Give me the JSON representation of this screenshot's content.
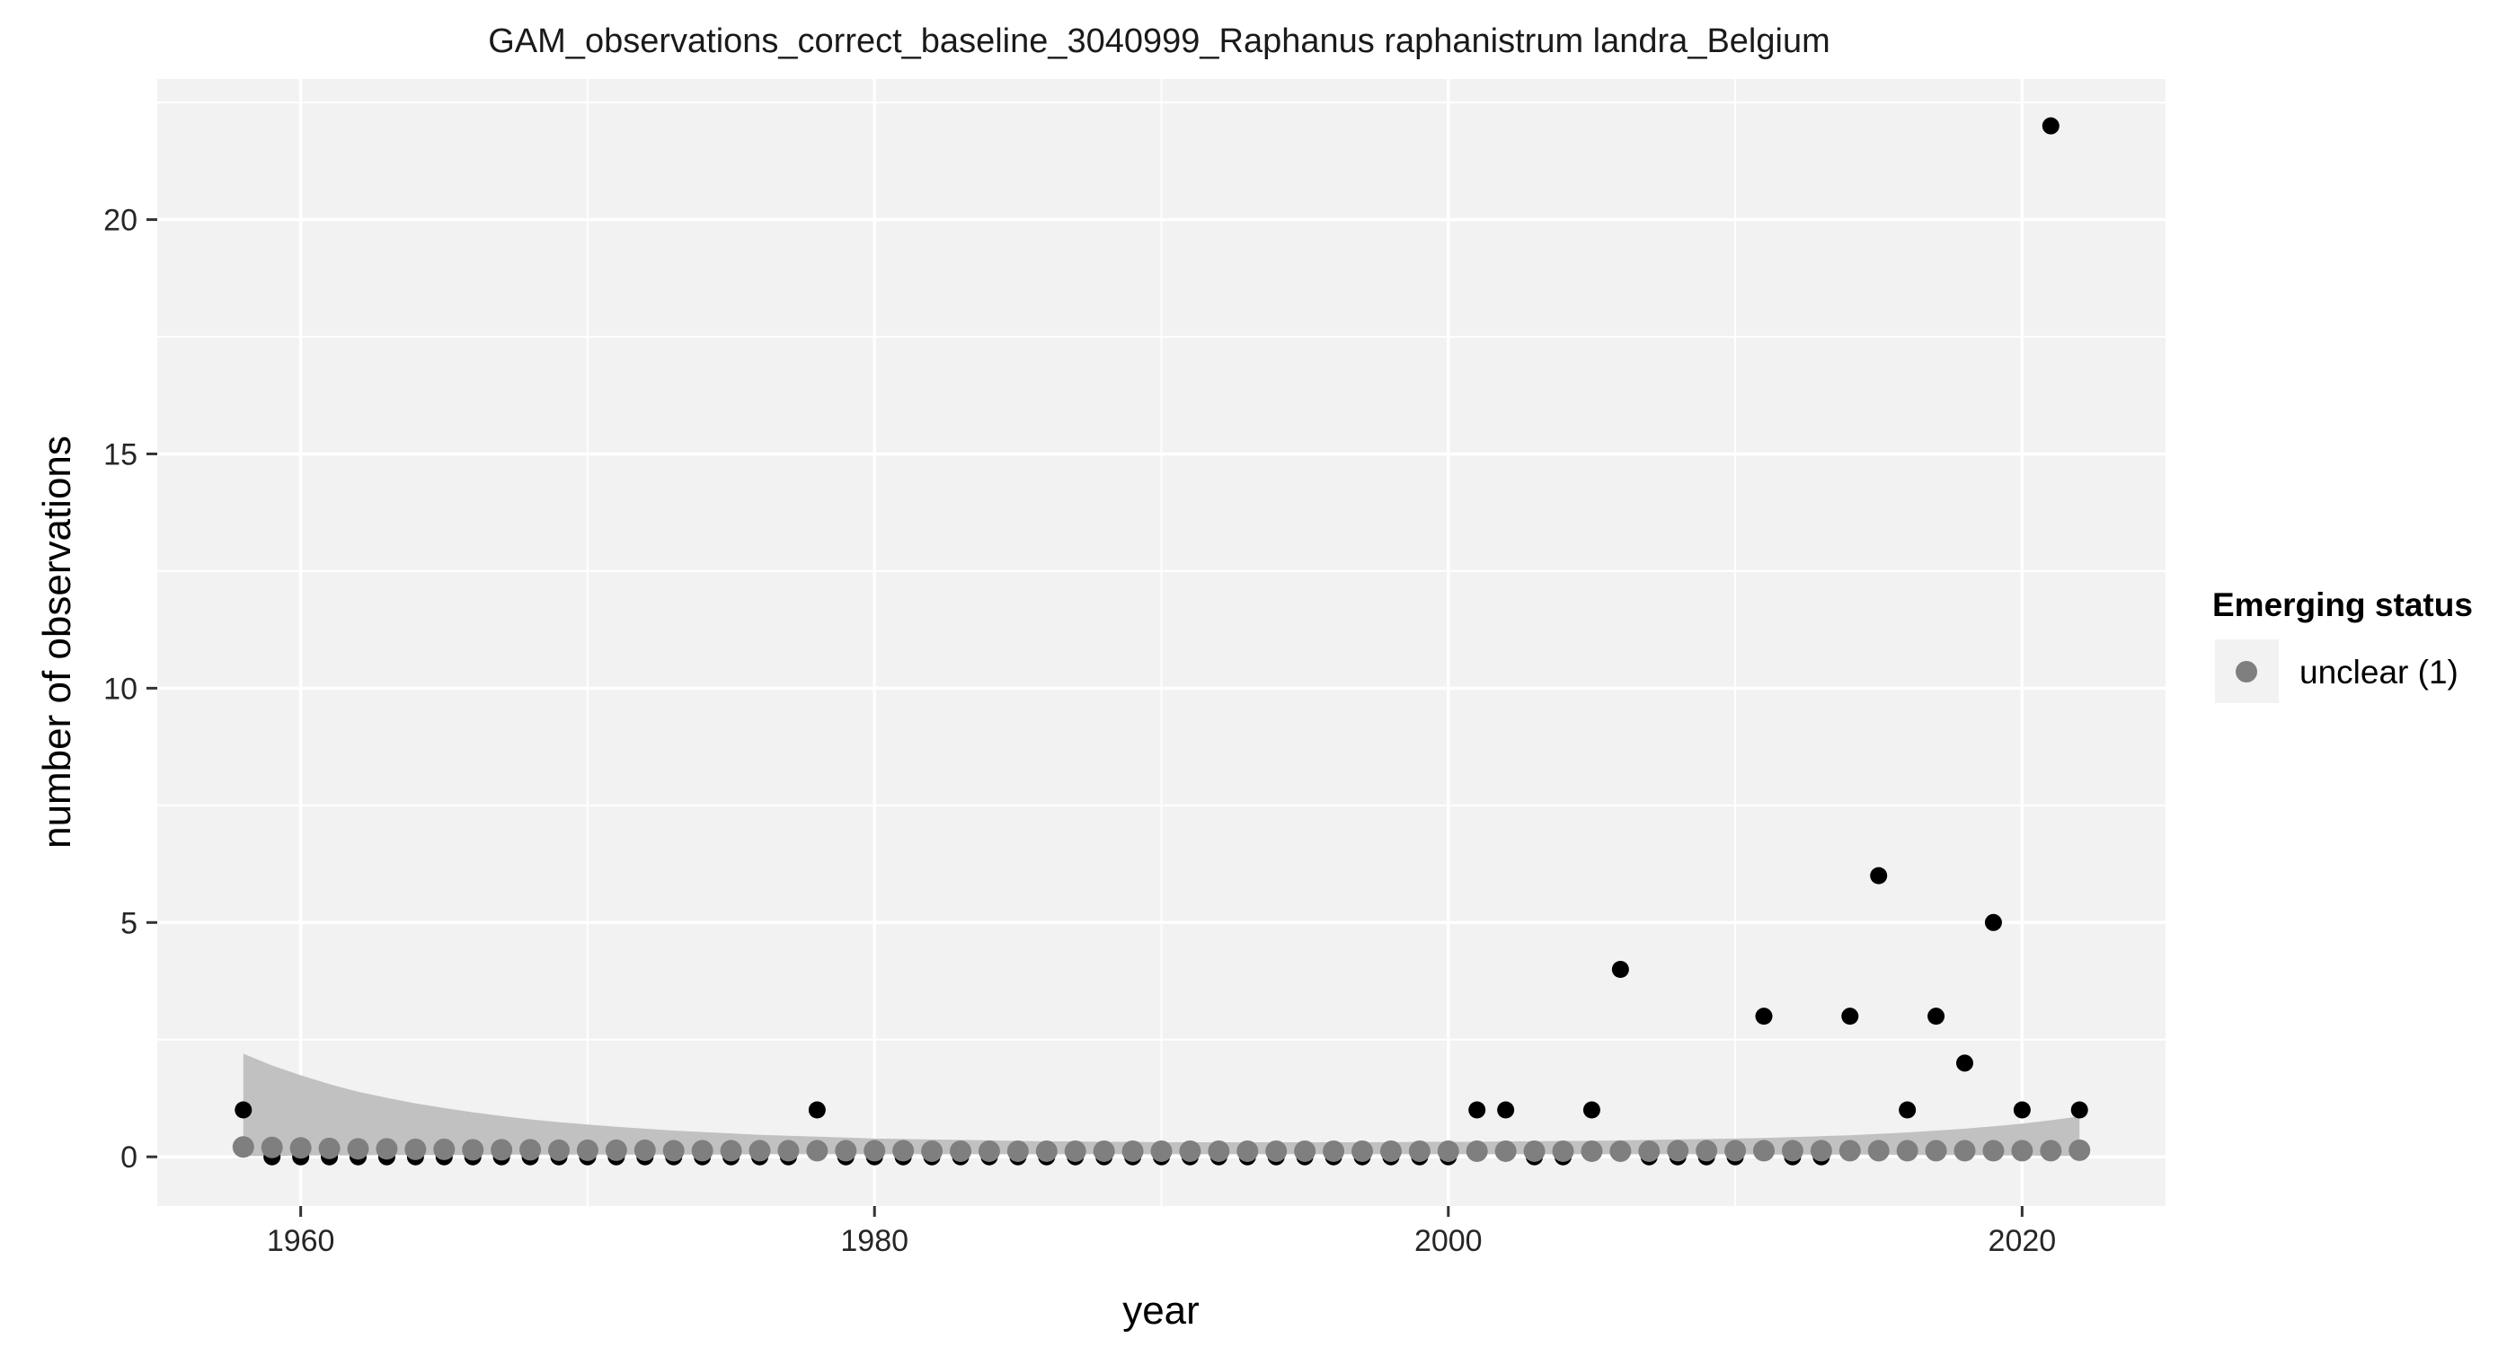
{
  "chart_data": {
    "type": "scatter",
    "title": "GAM_observations_correct_baseline_3040999_Raphanus raphanistrum landra_Belgium",
    "xlabel": "year",
    "ylabel": "number of observations",
    "xlim": [
      1955,
      2025
    ],
    "ylim": [
      -1.05,
      23
    ],
    "xticks": [
      1960,
      1980,
      2000,
      2020
    ],
    "yticks": [
      0,
      5,
      10,
      15,
      20
    ],
    "xtick_labels": [
      "1960",
      "1980",
      "2000",
      "2020"
    ],
    "ytick_labels": [
      "0",
      "5",
      "10",
      "15",
      "20"
    ],
    "grid": true,
    "legend": {
      "position": "right",
      "title": "Emerging status",
      "entries": [
        {
          "label": "unclear (1)",
          "color": "#7f7f7f"
        }
      ]
    },
    "colors": {
      "panel_background": "#f2f2f2",
      "grid": "#ffffff",
      "observed_points": "#000000",
      "fitted_points": "#7f7f7f",
      "confidence_band": "#bebebe"
    },
    "observed": {
      "x": [
        1958,
        1959,
        1960,
        1961,
        1962,
        1963,
        1964,
        1965,
        1966,
        1967,
        1968,
        1969,
        1970,
        1971,
        1972,
        1973,
        1974,
        1975,
        1976,
        1977,
        1978,
        1979,
        1980,
        1981,
        1982,
        1983,
        1984,
        1985,
        1986,
        1987,
        1988,
        1989,
        1990,
        1991,
        1992,
        1993,
        1994,
        1995,
        1996,
        1997,
        1998,
        1999,
        2000,
        2001,
        2002,
        2003,
        2004,
        2005,
        2006,
        2007,
        2008,
        2009,
        2010,
        2011,
        2012,
        2013,
        2014,
        2015,
        2016,
        2017,
        2018,
        2019,
        2020,
        2021,
        2022
      ],
      "y": [
        1,
        0,
        0,
        0,
        0,
        0,
        0,
        0,
        0,
        0,
        0,
        0,
        0,
        0,
        0,
        0,
        0,
        0,
        0,
        0,
        1,
        0,
        0,
        0,
        0,
        0,
        0,
        0,
        0,
        0,
        0,
        0,
        0,
        0,
        0,
        0,
        0,
        0,
        0,
        0,
        0,
        0,
        0,
        1,
        1,
        0,
        0,
        1,
        4,
        0,
        0,
        0,
        0,
        3,
        0,
        0,
        3,
        6,
        1,
        3,
        2,
        5,
        1,
        22,
        1
      ]
    },
    "fitted": {
      "x": [
        1958,
        1959,
        1960,
        1961,
        1962,
        1963,
        1964,
        1965,
        1966,
        1967,
        1968,
        1969,
        1970,
        1971,
        1972,
        1973,
        1974,
        1975,
        1976,
        1977,
        1978,
        1979,
        1980,
        1981,
        1982,
        1983,
        1984,
        1985,
        1986,
        1987,
        1988,
        1989,
        1990,
        1991,
        1992,
        1993,
        1994,
        1995,
        1996,
        1997,
        1998,
        1999,
        2000,
        2001,
        2002,
        2003,
        2004,
        2005,
        2006,
        2007,
        2008,
        2009,
        2010,
        2011,
        2012,
        2013,
        2014,
        2015,
        2016,
        2017,
        2018,
        2019,
        2020,
        2021,
        2022
      ],
      "y": [
        0.21,
        0.2,
        0.19,
        0.18,
        0.17,
        0.17,
        0.16,
        0.16,
        0.15,
        0.15,
        0.15,
        0.14,
        0.14,
        0.14,
        0.14,
        0.13,
        0.13,
        0.13,
        0.13,
        0.13,
        0.13,
        0.13,
        0.13,
        0.13,
        0.12,
        0.12,
        0.12,
        0.12,
        0.12,
        0.12,
        0.12,
        0.12,
        0.12,
        0.12,
        0.12,
        0.12,
        0.12,
        0.12,
        0.12,
        0.12,
        0.12,
        0.12,
        0.12,
        0.12,
        0.12,
        0.12,
        0.12,
        0.12,
        0.12,
        0.12,
        0.13,
        0.13,
        0.13,
        0.13,
        0.13,
        0.13,
        0.13,
        0.13,
        0.13,
        0.13,
        0.13,
        0.13,
        0.13,
        0.13,
        0.14
      ],
      "lower": [
        0.02,
        0.02,
        0.03,
        0.03,
        0.03,
        0.04,
        0.04,
        0.04,
        0.04,
        0.05,
        0.05,
        0.05,
        0.05,
        0.05,
        0.05,
        0.05,
        0.05,
        0.05,
        0.06,
        0.06,
        0.06,
        0.06,
        0.06,
        0.06,
        0.06,
        0.06,
        0.06,
        0.06,
        0.06,
        0.06,
        0.06,
        0.06,
        0.06,
        0.06,
        0.06,
        0.06,
        0.06,
        0.06,
        0.06,
        0.06,
        0.06,
        0.06,
        0.06,
        0.06,
        0.06,
        0.06,
        0.06,
        0.06,
        0.06,
        0.06,
        0.06,
        0.06,
        0.06,
        0.05,
        0.05,
        0.05,
        0.05,
        0.05,
        0.04,
        0.04,
        0.04,
        0.03,
        0.03,
        0.02,
        0.02
      ],
      "upper": [
        2.2,
        1.95,
        1.74,
        1.55,
        1.39,
        1.26,
        1.14,
        1.04,
        0.95,
        0.87,
        0.8,
        0.74,
        0.69,
        0.64,
        0.6,
        0.56,
        0.53,
        0.5,
        0.47,
        0.45,
        0.43,
        0.41,
        0.39,
        0.38,
        0.37,
        0.36,
        0.35,
        0.34,
        0.33,
        0.33,
        0.32,
        0.32,
        0.31,
        0.31,
        0.31,
        0.31,
        0.31,
        0.31,
        0.31,
        0.31,
        0.31,
        0.32,
        0.32,
        0.32,
        0.33,
        0.33,
        0.34,
        0.34,
        0.35,
        0.36,
        0.37,
        0.38,
        0.39,
        0.4,
        0.42,
        0.44,
        0.46,
        0.49,
        0.52,
        0.56,
        0.6,
        0.65,
        0.71,
        0.78,
        0.86
      ]
    }
  }
}
